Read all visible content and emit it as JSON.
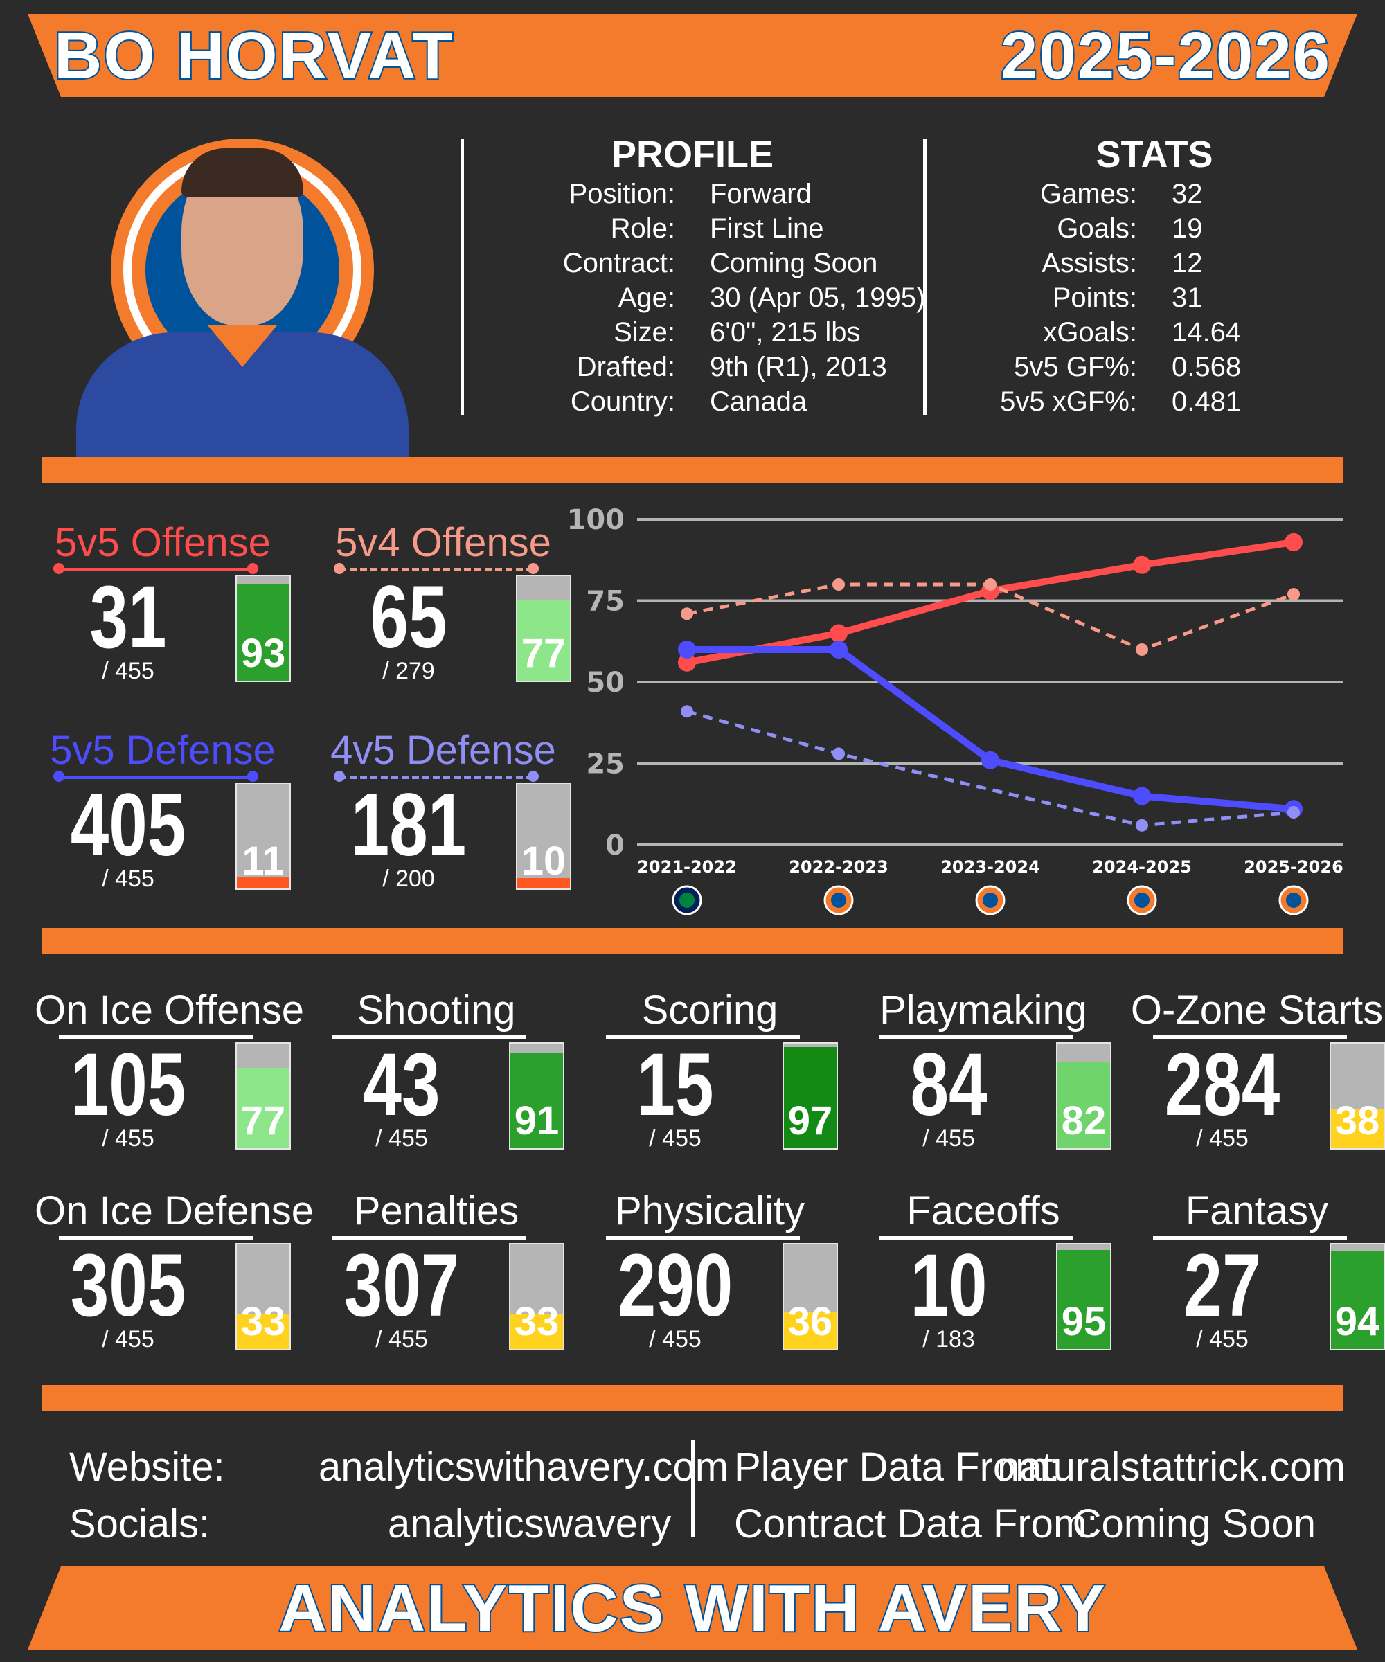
{
  "header": {
    "player_name": "BO HORVAT",
    "season": "2025-2026"
  },
  "profile": {
    "title": "PROFILE",
    "rows": [
      {
        "label": "Position:",
        "value": "Forward"
      },
      {
        "label": "Role:",
        "value": "First Line"
      },
      {
        "label": "Contract:",
        "value": "Coming Soon"
      },
      {
        "label": "Age:",
        "value": "30 (Apr 05, 1995)"
      },
      {
        "label": "Size:",
        "value": "6'0\", 215 lbs"
      },
      {
        "label": "Drafted:",
        "value": "9th (R1), 2013"
      },
      {
        "label": "Country:",
        "value": "Canada"
      }
    ]
  },
  "stats": {
    "title": "STATS",
    "rows": [
      {
        "label": "Games:",
        "value": "32"
      },
      {
        "label": "Goals:",
        "value": "19"
      },
      {
        "label": "Assists:",
        "value": "12"
      },
      {
        "label": "Points:",
        "value": "31"
      },
      {
        "label": "xGoals:",
        "value": "14.64"
      },
      {
        "label": "5v5 GF%:",
        "value": "0.568"
      },
      {
        "label": "5v5 xGF%:",
        "value": "0.481"
      }
    ]
  },
  "situational": [
    {
      "name": "5v5 Offense",
      "rank": "31",
      "total": "/ 455",
      "pct": 93,
      "pct_label": "93",
      "color": "#ff4d4d",
      "dashed": false,
      "fill": "#2ca02c"
    },
    {
      "name": "5v4 Offense",
      "rank": "65",
      "total": "/ 279",
      "pct": 77,
      "pct_label": "77",
      "color": "#f79a8a",
      "dashed": true,
      "fill": "#8ee68a"
    },
    {
      "name": "5v5 Defense",
      "rank": "405",
      "total": "/ 455",
      "pct": 11,
      "pct_label": "11",
      "color": "#4d4dff",
      "dashed": false,
      "fill": "#ff5722"
    },
    {
      "name": "4v5 Defense",
      "rank": "181",
      "total": "/ 200",
      "pct": 10,
      "pct_label": "10",
      "color": "#8f8ff5",
      "dashed": true,
      "fill": "#ff5722"
    }
  ],
  "chart_data": {
    "type": "line",
    "categories": [
      "2021-2022",
      "2022-2023",
      "2023-2024",
      "2024-2025",
      "2025-2026"
    ],
    "team_icons": [
      "canucks-logo-icon",
      "islanders-logo-icon",
      "islanders-logo-icon",
      "islanders-logo-icon",
      "islanders-logo-icon"
    ],
    "yticks": [
      "0",
      "25",
      "50",
      "75",
      "100"
    ],
    "ylim": [
      0,
      100
    ],
    "grid": true,
    "series": [
      {
        "values": [
          56,
          65,
          78,
          86,
          93
        ],
        "color": "#ff4d4d",
        "dashed": false
      },
      {
        "values": [
          71,
          80,
          80,
          60,
          77
        ],
        "color": "#f79a8a",
        "dashed": true
      },
      {
        "values": [
          60,
          60,
          26,
          15,
          11
        ],
        "color": "#4d4dff",
        "dashed": false
      },
      {
        "values": [
          41,
          28,
          null,
          6,
          10
        ],
        "color": "#8f8ff5",
        "dashed": true
      }
    ]
  },
  "categories": [
    {
      "name": "On Ice Offense",
      "rank": "105",
      "total": "/ 455",
      "pct": 77,
      "pct_label": "77",
      "fill": "#8ee68a"
    },
    {
      "name": "Shooting",
      "rank": "43",
      "total": "/ 455",
      "pct": 91,
      "pct_label": "91",
      "fill": "#2ca02c"
    },
    {
      "name": "Scoring",
      "rank": "15",
      "total": "/ 455",
      "pct": 97,
      "pct_label": "97",
      "fill": "#138a13"
    },
    {
      "name": "Playmaking",
      "rank": "84",
      "total": "/ 455",
      "pct": 82,
      "pct_label": "82",
      "fill": "#6fd46b"
    },
    {
      "name": "O-Zone Starts",
      "rank": "284",
      "total": "/ 455",
      "pct": 38,
      "pct_label": "38",
      "fill": "#ffd21f"
    },
    {
      "name": "On Ice Defense",
      "rank": "305",
      "total": "/ 455",
      "pct": 33,
      "pct_label": "33",
      "fill": "#ffd21f"
    },
    {
      "name": "Penalties",
      "rank": "307",
      "total": "/ 455",
      "pct": 33,
      "pct_label": "33",
      "fill": "#ffd21f"
    },
    {
      "name": "Physicality",
      "rank": "290",
      "total": "/ 455",
      "pct": 36,
      "pct_label": "36",
      "fill": "#ffd21f"
    },
    {
      "name": "Faceoffs",
      "rank": "10",
      "total": "/ 183",
      "pct": 95,
      "pct_label": "95",
      "fill": "#2ca02c"
    },
    {
      "name": "Fantasy",
      "rank": "27",
      "total": "/ 455",
      "pct": 94,
      "pct_label": "94",
      "fill": "#2ca02c"
    }
  ],
  "footer": {
    "website_label": "Website:",
    "website": "analyticswithavery.com",
    "socials_label": "Socials:",
    "socials": "analyticswavery",
    "player_data_label": "Player Data From:",
    "player_data": "naturalstattrick.com",
    "contract_data_label": "Contract Data From:",
    "contract_data": "Coming Soon",
    "brand": "ANALYTICS WITH AVERY"
  },
  "colors": {
    "orange": "#f47b2b",
    "blue": "#00539b",
    "background": "#2b2b2b",
    "bar_empty": "#b5b5b5"
  }
}
